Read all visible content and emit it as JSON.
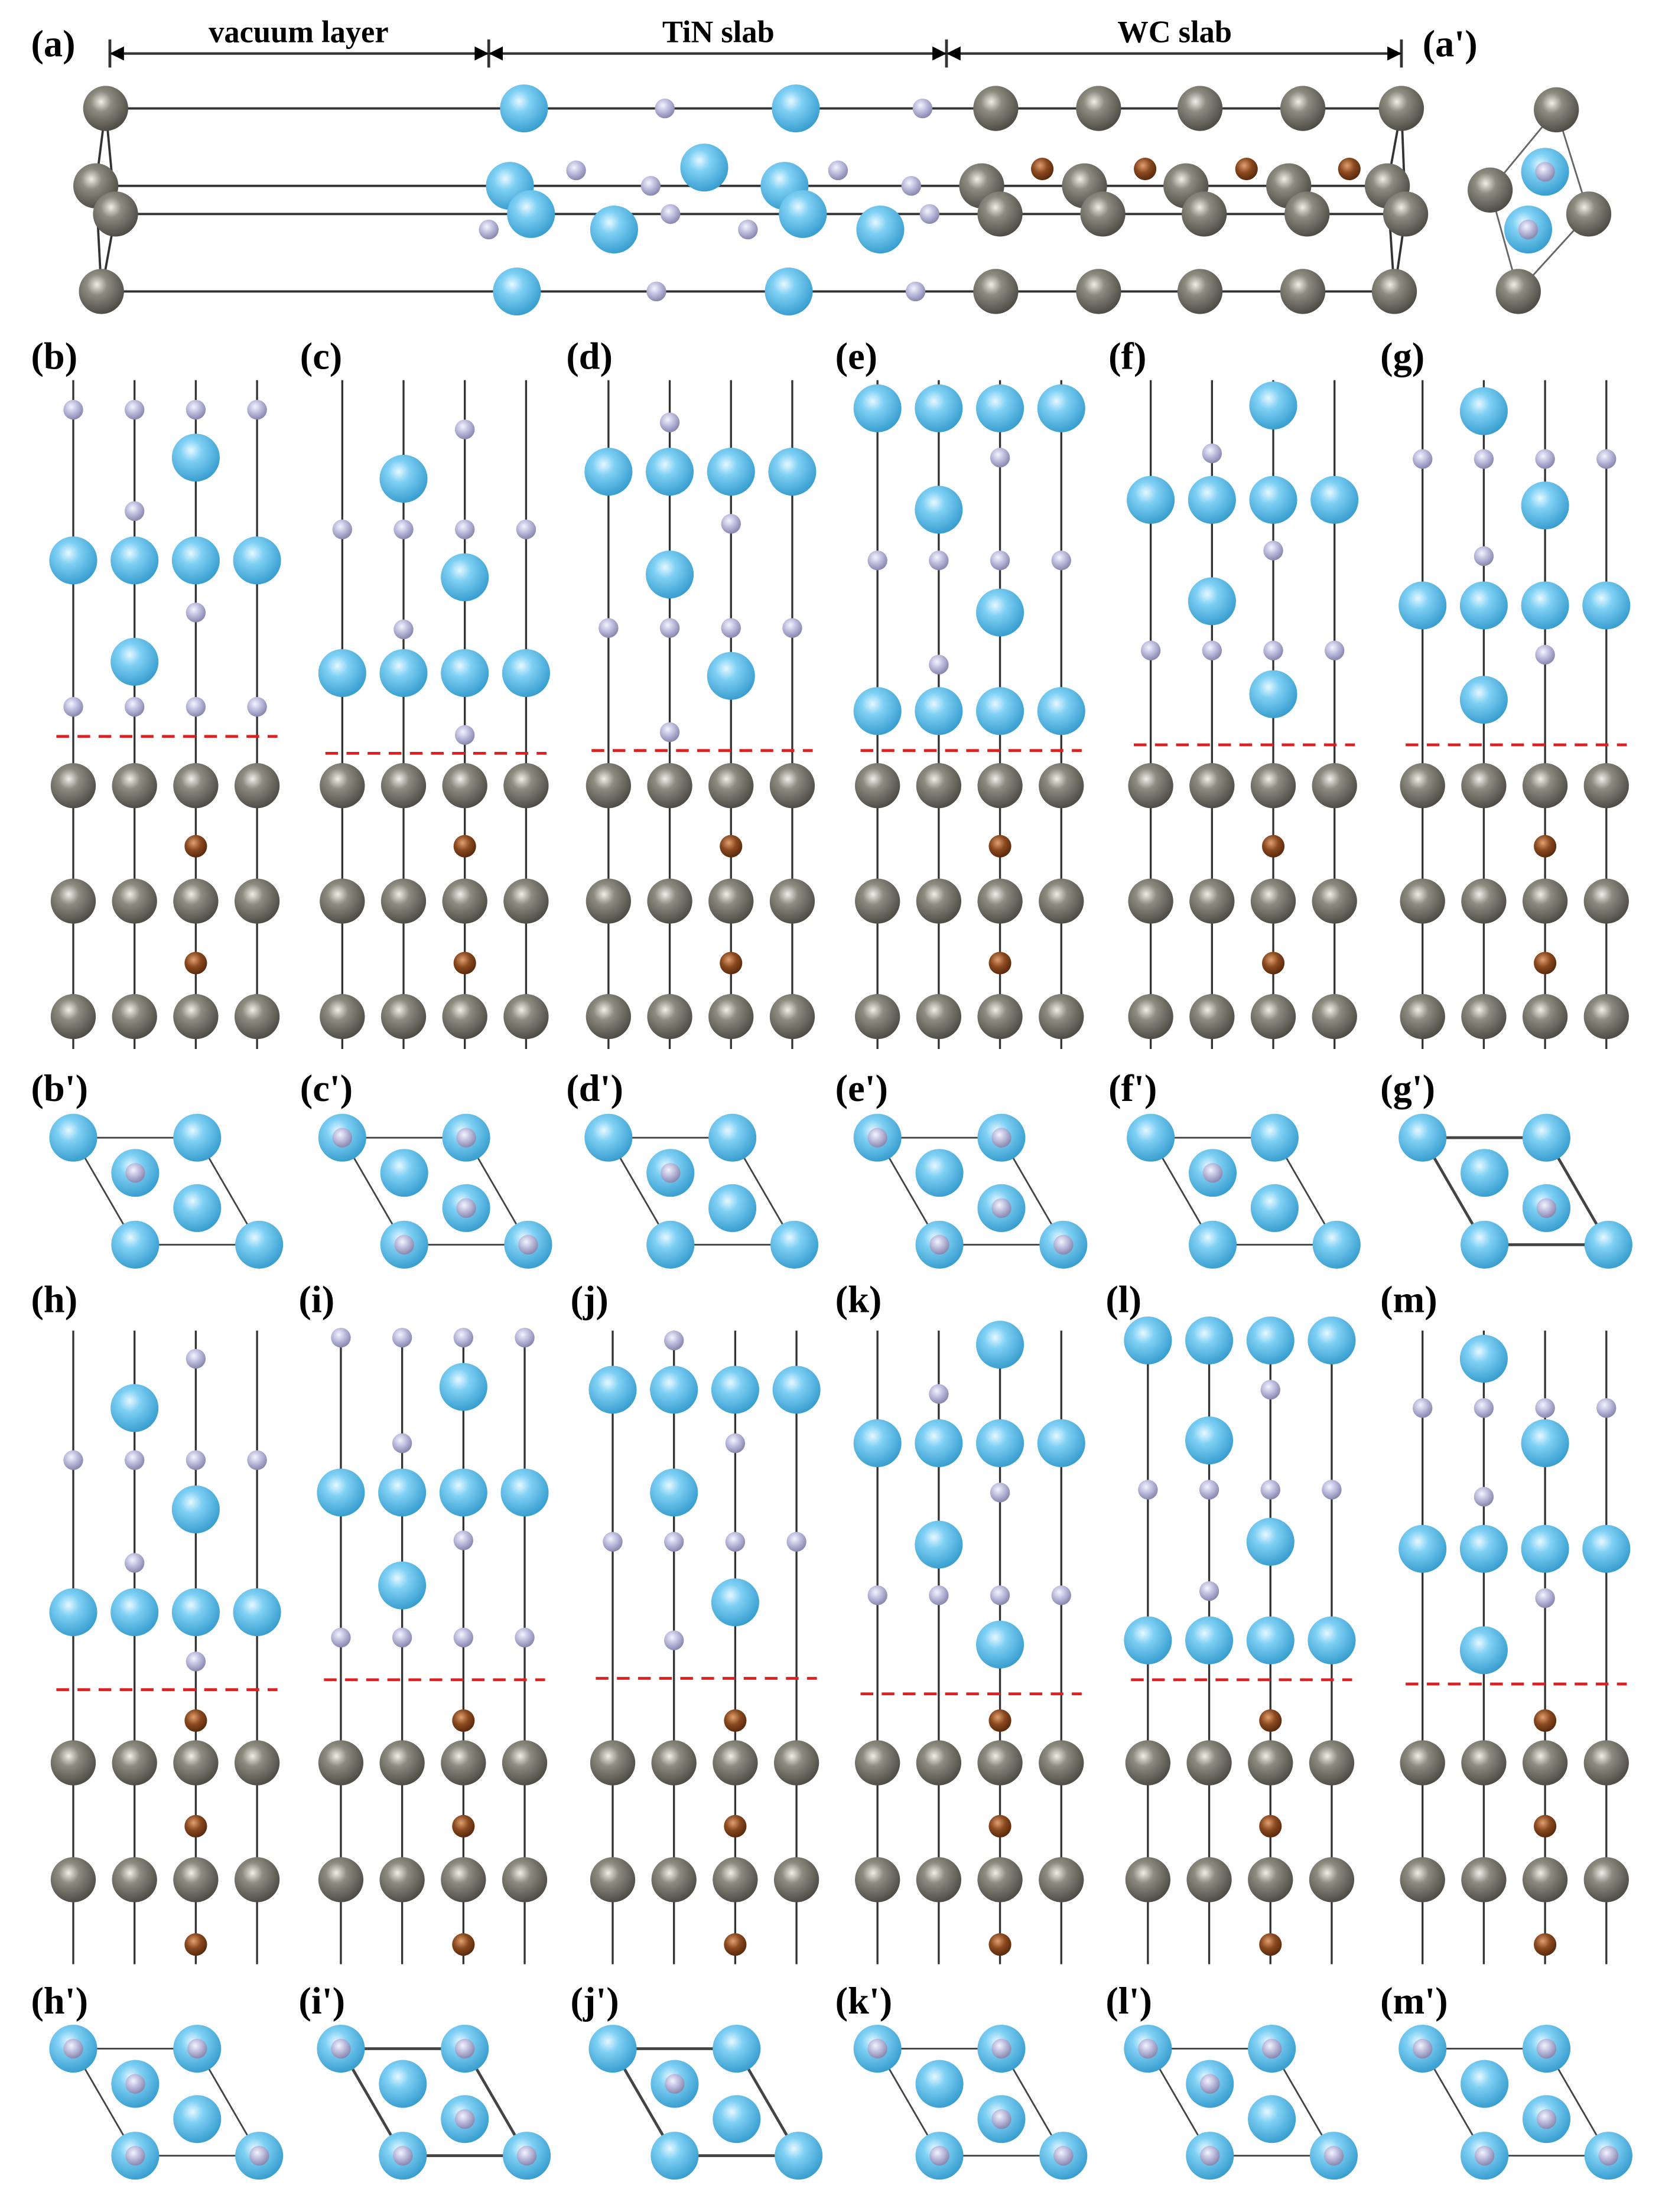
{
  "dimension_labels": [
    "vacuum layer",
    "TiN slab",
    "WC slab"
  ],
  "panel_a": {
    "label": "(a)",
    "top_view_label": "(a')"
  },
  "side_panels": [
    {
      "label": "(b)",
      "top_view_label": "(b')"
    },
    {
      "label": "(c)",
      "top_view_label": "(c')"
    },
    {
      "label": "(d)",
      "top_view_label": "(d')"
    },
    {
      "label": "(e)",
      "top_view_label": "(e')"
    },
    {
      "label": "(f)",
      "top_view_label": "(f')"
    },
    {
      "label": "(g)",
      "top_view_label": "(g')"
    },
    {
      "label": "(h)",
      "top_view_label": "(h')"
    },
    {
      "label": "(i)",
      "top_view_label": "(i')"
    },
    {
      "label": "(j)",
      "top_view_label": "(j')"
    },
    {
      "label": "(k)",
      "top_view_label": "(k')"
    },
    {
      "label": "(l)",
      "top_view_label": "(l')"
    },
    {
      "label": "(m)",
      "top_view_label": "(m')"
    }
  ]
}
